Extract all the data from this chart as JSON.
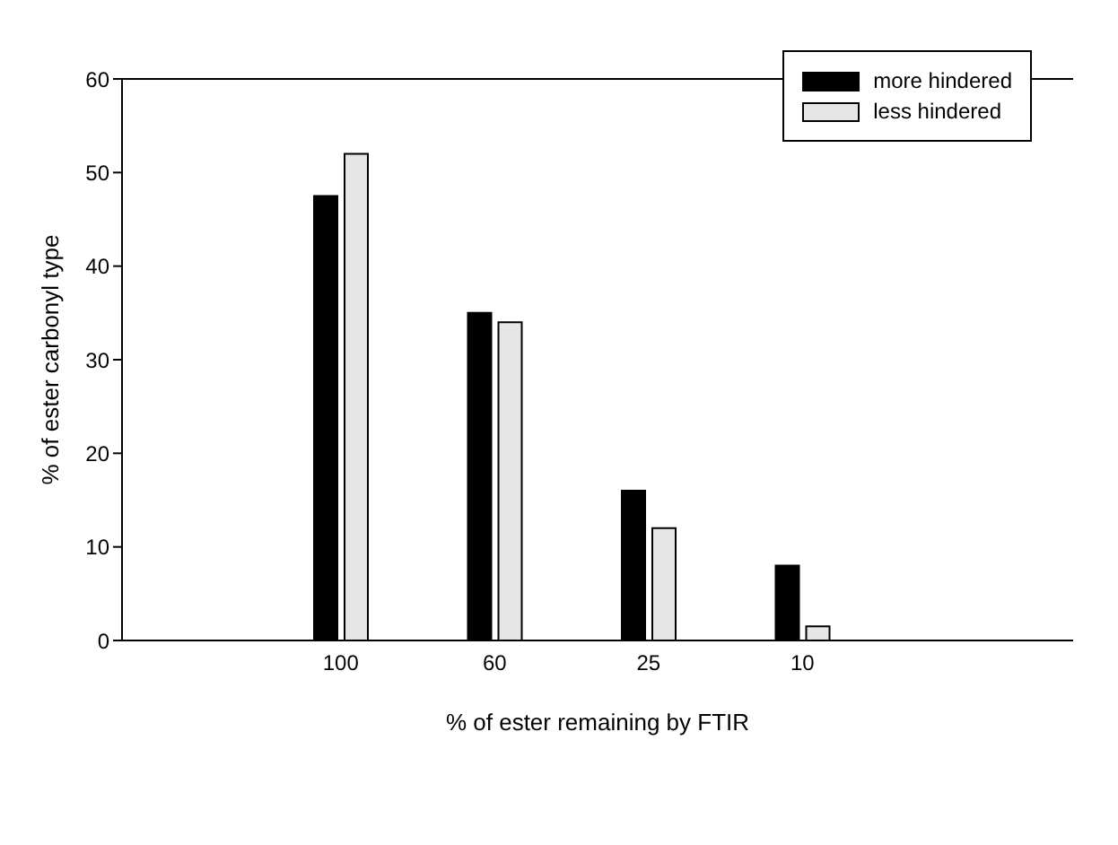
{
  "chart_data": {
    "type": "bar",
    "xlabel": "% of ester remaining by FTIR",
    "ylabel": "% of ester carbonyl type",
    "categories": [
      "100",
      "60",
      "25",
      "10"
    ],
    "series": [
      {
        "name": "more hindered",
        "color": "#000000",
        "values": [
          47.5,
          35,
          16,
          8
        ]
      },
      {
        "name": "less hindered",
        "color": "#e6e6e6",
        "values": [
          52,
          34,
          12,
          1.5
        ]
      }
    ],
    "ylim": [
      0,
      60
    ],
    "yticks": [
      0,
      10,
      20,
      30,
      40,
      50,
      60
    ],
    "legend": "top right"
  }
}
